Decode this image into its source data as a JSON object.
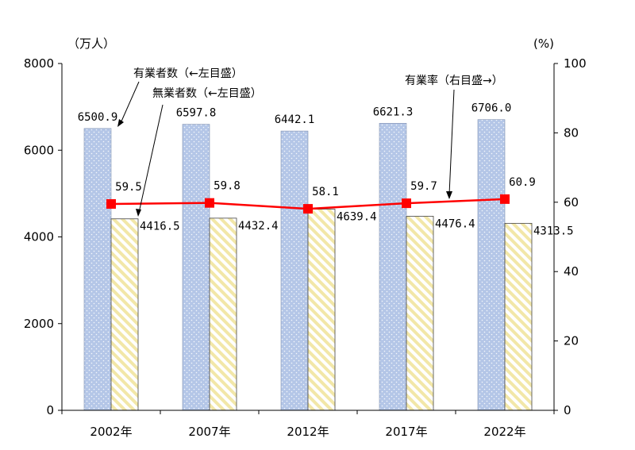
{
  "chart_data": {
    "type": "bar",
    "categories": [
      "2002年",
      "2007年",
      "2012年",
      "2017年",
      "2022年"
    ],
    "left_unit": "（万人）",
    "right_unit": "(%)",
    "ylim_left": [
      0,
      8000
    ],
    "ylim_right": [
      0,
      100
    ],
    "yticks_left": [
      "0",
      "2000",
      "4000",
      "6000",
      "8000"
    ],
    "yticks_right": [
      "0",
      "20",
      "40",
      "60",
      "80",
      "100"
    ],
    "series": [
      {
        "name": "有業者数（←左目盛）",
        "kind": "bar",
        "axis": "left",
        "values": [
          6500.9,
          6597.8,
          6442.1,
          6621.3,
          6706.0
        ],
        "labels": [
          "6500.9",
          "6597.8",
          "6442.1",
          "6621.3",
          "6706.0"
        ],
        "color": "#b4c6e7"
      },
      {
        "name": "無業者数（←左目盛）",
        "kind": "bar",
        "axis": "left",
        "values": [
          4416.5,
          4432.4,
          4639.4,
          4476.4,
          4313.5
        ],
        "labels": [
          "4416.5",
          "4432.4",
          "4639.4",
          "4476.4",
          "4313.5"
        ],
        "color": "#f2e7a8"
      },
      {
        "name": "有業率（右目盛→）",
        "kind": "line",
        "axis": "right",
        "values": [
          59.5,
          59.8,
          58.1,
          59.7,
          60.9
        ],
        "labels": [
          "59.5",
          "59.8",
          "58.1",
          "59.7",
          "60.9"
        ],
        "color": "#ff0000"
      }
    ],
    "grid": false,
    "legend": "annotations"
  }
}
